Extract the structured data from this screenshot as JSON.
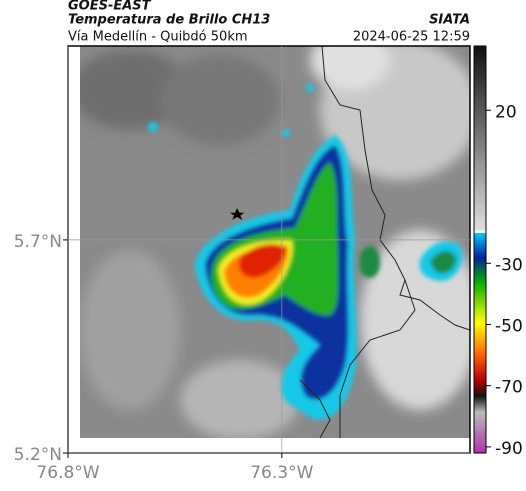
{
  "header": {
    "product": "GOES-EAST",
    "title": "Temperatura de Brillo CH13",
    "subtitle": "Vía Medellín - Quibdó 50km",
    "source": "SIATA",
    "datetime": "2024-06-25 12:59"
  },
  "map": {
    "ylim": [
      5.2,
      6.155
    ],
    "xlim": [
      -76.8,
      -75.86
    ],
    "yticks": [
      {
        "value": 5.7,
        "label": "5.7°N"
      },
      {
        "value": 5.2,
        "label": "5.2°N"
      }
    ],
    "xticks": [
      {
        "value": -76.8,
        "label": "76.8°W"
      },
      {
        "value": -76.3,
        "label": "76.3°W"
      }
    ]
  },
  "colorbar": {
    "lim": [
      41,
      -92
    ],
    "ticks": [
      20,
      -30,
      -50,
      -70,
      -90
    ]
  }
}
